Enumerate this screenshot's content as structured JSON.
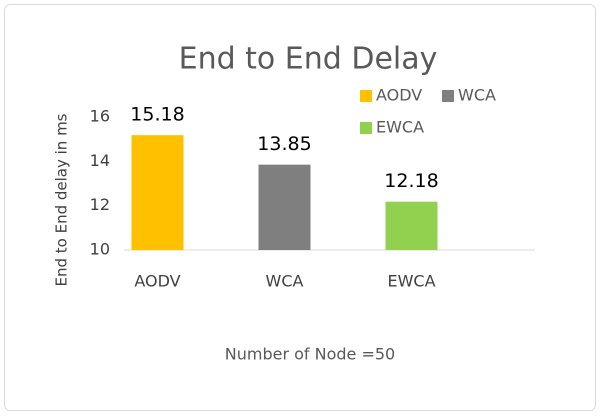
{
  "chart_data": {
    "type": "bar",
    "title": "End to End Delay",
    "categories": [
      "AODV",
      "WCA",
      "EWCA"
    ],
    "values": [
      15.18,
      13.85,
      12.18
    ],
    "colors": [
      "#ffc000",
      "#7f7f7f",
      "#92d050"
    ],
    "y_label": "End to End delay in ms",
    "x_label": "Number of Node =50",
    "ylim": [
      10,
      16
    ],
    "yticks": [
      10,
      12,
      14,
      16
    ],
    "grid": false,
    "legend": "top-right"
  }
}
